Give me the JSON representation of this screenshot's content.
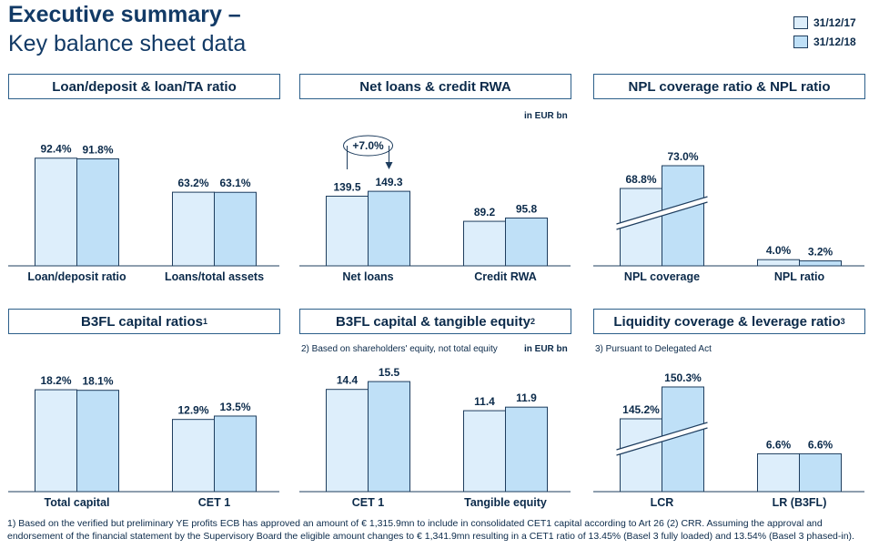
{
  "header": {
    "title": "Executive summary –",
    "subtitle": "Key balance sheet data"
  },
  "legend": [
    {
      "label": "31/12/17",
      "color": "#ddeefb"
    },
    {
      "label": "31/12/18",
      "color": "#bfe0f7"
    }
  ],
  "colors": {
    "series_2017": "#ddeefb",
    "series_2018": "#bfe0f7",
    "border": "#1e3d5e",
    "text": "#0b2a4a"
  },
  "panels": [
    {
      "title": "Loan/deposit & loan/TA ratio",
      "sup": "",
      "note": "",
      "unit": ""
    },
    {
      "title": "Net loans & credit RWA",
      "sup": "",
      "note": "",
      "unit": "in EUR bn"
    },
    {
      "title": "NPL coverage ratio & NPL ratio",
      "sup": "",
      "note": "",
      "unit": ""
    },
    {
      "title": "B3FL capital ratios",
      "sup": "1",
      "note": "",
      "unit": ""
    },
    {
      "title": "B3FL capital & tangible equity",
      "sup": "2",
      "note": "2) Based on shareholders' equity, not total equity",
      "unit": "in EUR bn"
    },
    {
      "title": "Liquidity coverage & leverage ratio",
      "sup": "3",
      "note": "3) Pursuant to Delegated Act",
      "unit": ""
    }
  ],
  "annotation": {
    "growth_label": "+7.0%"
  },
  "chart_data": [
    {
      "type": "bar",
      "categories": [
        "Loan/deposit ratio",
        "Loans/total assets"
      ],
      "series": [
        {
          "name": "31/12/17",
          "values": [
            92.4,
            63.2
          ],
          "labels": [
            "92.4%",
            "63.2%"
          ]
        },
        {
          "name": "31/12/18",
          "values": [
            91.8,
            63.1
          ],
          "labels": [
            "91.8%",
            "63.1%"
          ]
        }
      ]
    },
    {
      "type": "bar",
      "categories": [
        "Net loans",
        "Credit RWA"
      ],
      "series": [
        {
          "name": "31/12/17",
          "values": [
            139.5,
            89.2
          ],
          "labels": [
            "139.5",
            "89.2"
          ]
        },
        {
          "name": "31/12/18",
          "values": [
            149.3,
            95.8
          ],
          "labels": [
            "149.3",
            "95.8"
          ]
        }
      ]
    },
    {
      "type": "bar",
      "categories": [
        "NPL coverage",
        "NPL ratio"
      ],
      "broken_axis_category": "NPL coverage",
      "series": [
        {
          "name": "31/12/17",
          "values": [
            68.8,
            4.0
          ],
          "labels": [
            "68.8%",
            "4.0%"
          ]
        },
        {
          "name": "31/12/18",
          "values": [
            73.0,
            3.2
          ],
          "labels": [
            "73.0%",
            "3.2%"
          ]
        }
      ]
    },
    {
      "type": "bar",
      "categories": [
        "Total capital",
        "CET 1"
      ],
      "series": [
        {
          "name": "31/12/17",
          "values": [
            18.2,
            12.9
          ],
          "labels": [
            "18.2%",
            "12.9%"
          ]
        },
        {
          "name": "31/12/18",
          "values": [
            18.1,
            13.5
          ],
          "labels": [
            "18.1%",
            "13.5%"
          ]
        }
      ]
    },
    {
      "type": "bar",
      "categories": [
        "CET 1",
        "Tangible equity"
      ],
      "series": [
        {
          "name": "31/12/17",
          "values": [
            14.4,
            11.4
          ],
          "labels": [
            "14.4",
            "11.4"
          ]
        },
        {
          "name": "31/12/18",
          "values": [
            15.5,
            11.9
          ],
          "labels": [
            "15.5",
            "11.9"
          ]
        }
      ]
    },
    {
      "type": "bar",
      "categories": [
        "LCR",
        "LR (B3FL)"
      ],
      "broken_axis_category": "LCR",
      "series": [
        {
          "name": "31/12/17",
          "values": [
            145.2,
            6.6
          ],
          "labels": [
            "145.2%",
            "6.6%"
          ]
        },
        {
          "name": "31/12/18",
          "values": [
            150.3,
            6.6
          ],
          "labels": [
            "150.3%",
            "6.6%"
          ]
        }
      ]
    }
  ],
  "footnote": "1) Based on the verified but preliminary YE profits ECB has approved an amount of € 1,315.9mn to include in consolidated CET1 capital according to Art 26 (2) CRR. Assuming the approval and endorsement of the financial statement by the Supervisory Board the eligible amount changes to € 1,341.9mn resulting in a CET1 ratio of 13.45% (Basel 3 fully loaded) and 13.54% (Basel 3 phased-in)."
}
